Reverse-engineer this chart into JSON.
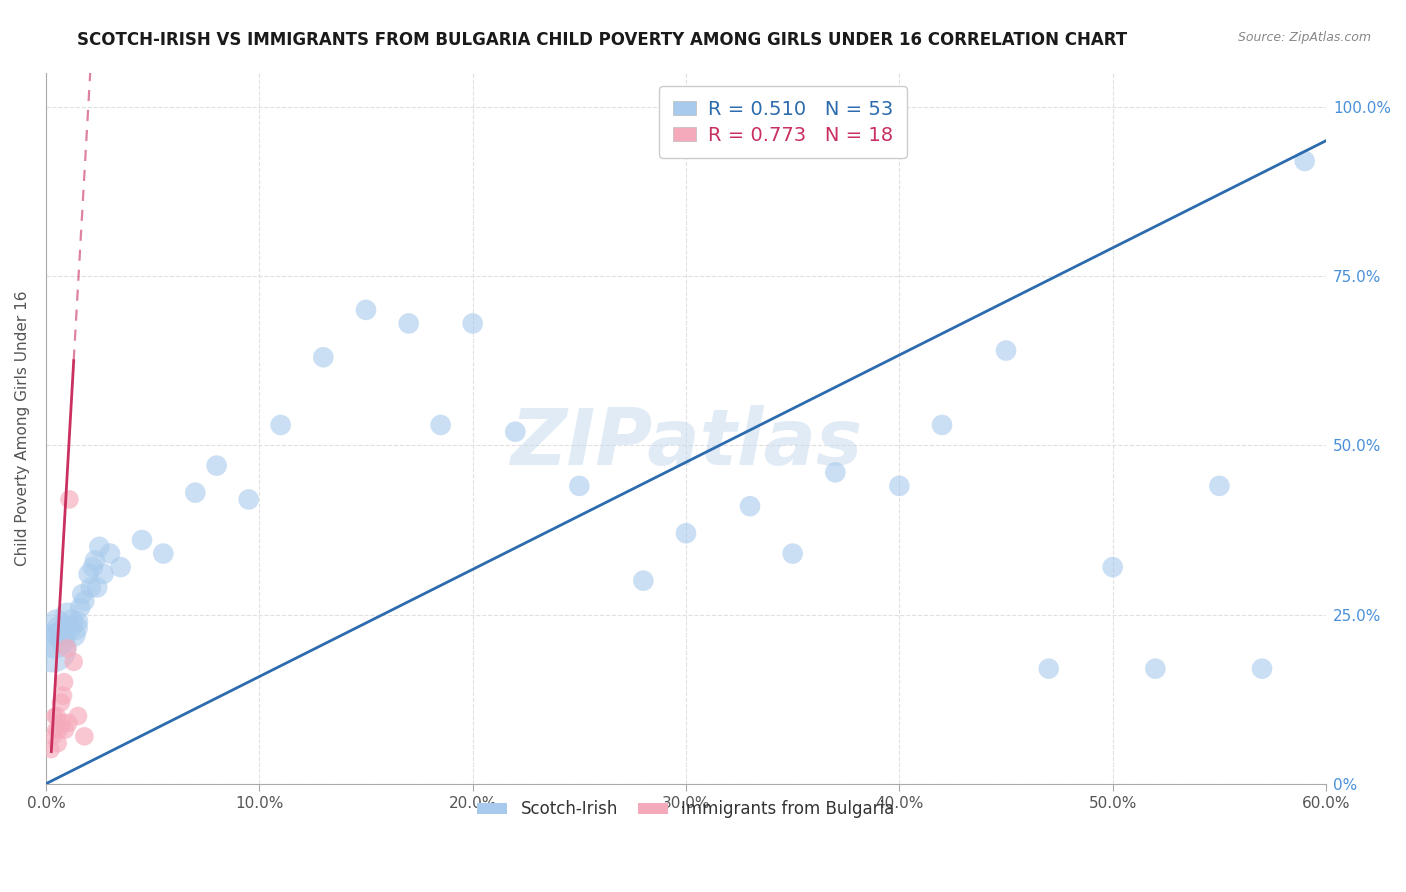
{
  "title": "SCOTCH-IRISH VS IMMIGRANTS FROM BULGARIA CHILD POVERTY AMONG GIRLS UNDER 16 CORRELATION CHART",
  "source": "Source: ZipAtlas.com",
  "ylabel": "Child Poverty Among Girls Under 16",
  "x_tick_labels": [
    "0.0%",
    "10.0%",
    "20.0%",
    "30.0%",
    "40.0%",
    "50.0%",
    "60.0%"
  ],
  "x_tick_vals": [
    0,
    10,
    20,
    30,
    40,
    50,
    60
  ],
  "y_tick_labels_right": [
    "0%",
    "25.0%",
    "50.0%",
    "75.0%",
    "100.0%"
  ],
  "y_tick_vals": [
    0,
    25,
    50,
    75,
    100
  ],
  "xlim": [
    0,
    60
  ],
  "ylim": [
    0,
    105
  ],
  "legend_blue_label": "Scotch-Irish",
  "legend_pink_label": "Immigrants from Bulgaria",
  "R_blue": 0.51,
  "N_blue": 53,
  "R_pink": 0.773,
  "N_pink": 18,
  "blue_scatter_color": "#A8CAED",
  "pink_scatter_color": "#F5AABB",
  "blue_line_color": "#2C6BAD",
  "pink_line_color": "#C93060",
  "blue_scatter_x": [
    0.3,
    0.4,
    0.5,
    0.5,
    0.6,
    0.7,
    0.8,
    0.9,
    1.0,
    1.1,
    1.2,
    1.3,
    1.4,
    1.5,
    1.6,
    1.7,
    1.8,
    2.0,
    2.1,
    2.2,
    2.3,
    2.4,
    2.5,
    2.7,
    3.0,
    3.5,
    4.5,
    5.5,
    7.0,
    8.0,
    9.5,
    11.0,
    13.0,
    15.0,
    17.0,
    18.5,
    20.0,
    22.0,
    25.0,
    28.0,
    30.0,
    33.0,
    35.0,
    37.0,
    40.0,
    42.0,
    45.0,
    47.0,
    50.0,
    52.0,
    55.0,
    57.0,
    59.0
  ],
  "blue_scatter_y": [
    20,
    21,
    22,
    24,
    23,
    22,
    21,
    23,
    25,
    23,
    24,
    22,
    23,
    24,
    26,
    28,
    27,
    31,
    29,
    32,
    33,
    29,
    35,
    31,
    34,
    32,
    36,
    34,
    43,
    47,
    42,
    53,
    63,
    70,
    68,
    53,
    68,
    52,
    44,
    30,
    37,
    41,
    34,
    46,
    44,
    53,
    64,
    17,
    32,
    17,
    44,
    17,
    92
  ],
  "pink_scatter_x": [
    0.25,
    0.35,
    0.4,
    0.45,
    0.5,
    0.55,
    0.6,
    0.7,
    0.75,
    0.8,
    0.85,
    0.9,
    1.0,
    1.05,
    1.1,
    1.3,
    1.5,
    1.8
  ],
  "pink_scatter_y": [
    5,
    7,
    10,
    8,
    10,
    6,
    8,
    12,
    9,
    13,
    15,
    8,
    20,
    9,
    42,
    18,
    10,
    7
  ],
  "blue_line_x": [
    0,
    60
  ],
  "blue_line_y": [
    0,
    95
  ],
  "pink_solid_x_start": 0.25,
  "pink_solid_x_end": 1.3,
  "pink_dashed_x_end": 2.2,
  "pink_slope": 55,
  "pink_intercept": -9,
  "watermark": "ZIPatlas",
  "watermark_color": "#C5D9EF",
  "background_color": "#FFFFFF",
  "grid_color": "#E0E0E0",
  "title_fontsize": 12,
  "axis_label_fontsize": 11,
  "tick_fontsize": 11,
  "legend_fontsize": 14
}
